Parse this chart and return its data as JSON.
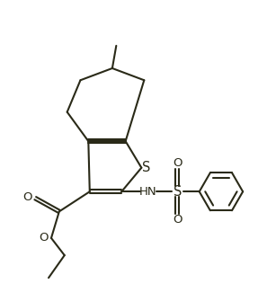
{
  "line_color": "#2a2a18",
  "bg_color": "#ffffff",
  "line_width": 1.5,
  "font_size": 9.5,
  "fig_width": 2.97,
  "fig_height": 3.35,
  "dpi": 100,
  "xlim": [
    0,
    10
  ],
  "ylim": [
    0,
    11.3
  ]
}
